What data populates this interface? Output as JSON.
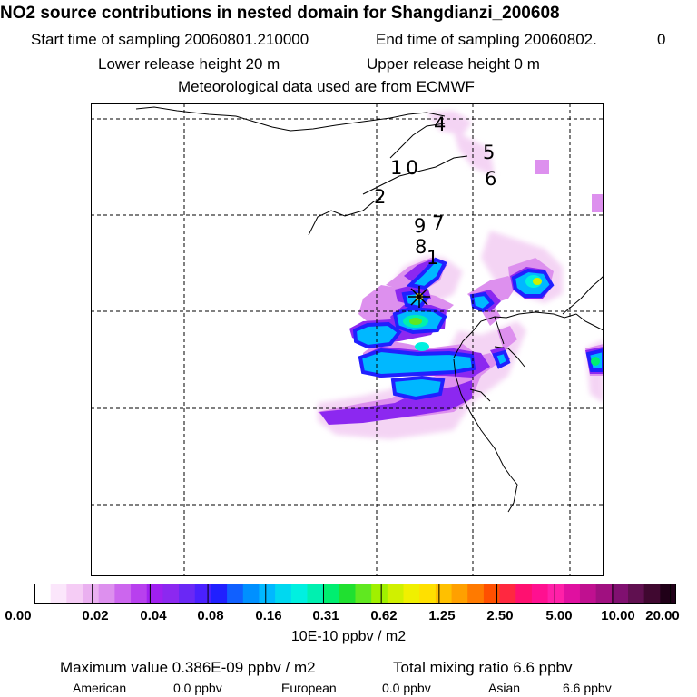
{
  "header": {
    "title": "NO2 source contributions in nested domain for Shangdianzi_200608",
    "start_sampling": "Start time of sampling 20060801.210000",
    "end_sampling": "End time of sampling 20060802.",
    "end_tail": "0",
    "lower_release": "Lower release height   20 m",
    "upper_release": "Upper release height    0 m",
    "met_data": "Meteorological data used are from ECMWF"
  },
  "map": {
    "source_labels": [
      "4",
      "5",
      "10",
      "6",
      "2",
      "9",
      "7",
      "8",
      "1"
    ],
    "colors": {
      "coastline": "#000000",
      "grid": "#000000",
      "station_marker": "#000000",
      "peak": "#ffcc00",
      "hot": "#ff3300"
    },
    "color_scale": [
      "#ffffff",
      "#fbe6fb",
      "#f5ccf5",
      "#eab0f0",
      "#dd90ee",
      "#cc66ee",
      "#b840ee",
      "#a020f0",
      "#8c28f0",
      "#6a28f5",
      "#4a20ff",
      "#2020ff",
      "#1060ff",
      "#0090ff",
      "#00b8ff",
      "#00d8f0",
      "#00f0e0",
      "#00f0b0",
      "#00ee70",
      "#20e030",
      "#60e820",
      "#a0f000",
      "#d0f000",
      "#f0f000",
      "#ffe000",
      "#ffc000",
      "#ffa000",
      "#ff7a00",
      "#ff5000",
      "#ff2840",
      "#ff1070",
      "#ff1090",
      "#ff20a8",
      "#e010a0",
      "#c01090",
      "#a01080",
      "#801070",
      "#601050",
      "#400830",
      "#200018"
    ]
  },
  "legend": {
    "ticks": [
      "0.00",
      "0.02",
      "0.04",
      "0.08",
      "0.16",
      "0.31",
      "0.62",
      "1.25",
      "2.50",
      "5.00",
      "10.00",
      "20.00"
    ],
    "units": "10E-10 ppbv / m2"
  },
  "footer": {
    "maximum_value": "Maximum value  0.386E-09 ppbv / m2",
    "total_mixing_ratio": "Total mixing ratio       6.6 ppbv",
    "american_label": "American",
    "american_value": "0.0 ppbv",
    "european_label": "European",
    "european_value": "0.0 ppbv",
    "asian_label": "Asian",
    "asian_value": "6.6 ppbv"
  }
}
